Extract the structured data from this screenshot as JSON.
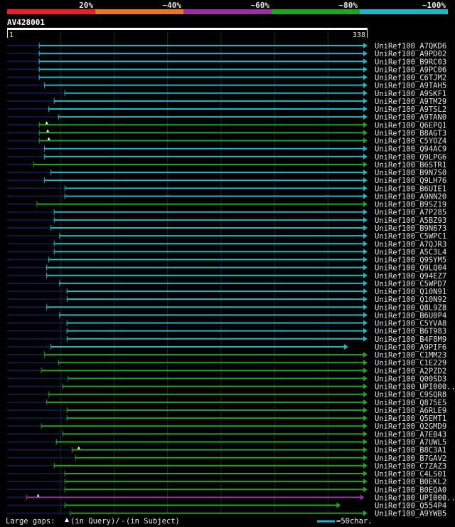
{
  "chart_data": {
    "type": "alignment-overview",
    "query_name": "AV428001",
    "query_length": 338,
    "scale_start_label": "1",
    "scale_end_label": "338",
    "color_scale": [
      {
        "label": "20%",
        "color": "#e8202a"
      },
      {
        "label": "~40%",
        "color": "#e97a1c"
      },
      {
        "label": "~60%",
        "color": "#9b2fa0"
      },
      {
        "label": "~80%",
        "color": "#1fa61f"
      },
      {
        "label": "~100%",
        "color": "#1eb7c8"
      }
    ],
    "hits": [
      {
        "name": "UniRef100_A7QKD6",
        "start": 31,
        "end": 338,
        "identity": "~100%",
        "pre_start": 1
      },
      {
        "name": "UniRef100_A9PD02",
        "start": 31,
        "end": 338,
        "identity": "~100%",
        "pre_start": 1
      },
      {
        "name": "UniRef100_B9RC03",
        "start": 31,
        "end": 338,
        "identity": "~100%",
        "pre_start": 1
      },
      {
        "name": "UniRef100_A9PC06",
        "start": 31,
        "end": 338,
        "identity": "~100%",
        "pre_start": 1
      },
      {
        "name": "UniRef100_C6TJM2",
        "start": 31,
        "end": 338,
        "identity": "~100%",
        "pre_start": 1
      },
      {
        "name": "UniRef100_A9TAH5",
        "start": 36,
        "end": 338,
        "identity": "~100%",
        "pre_start": 1
      },
      {
        "name": "UniRef100_A9SKF1",
        "start": 55,
        "end": 338,
        "identity": "~100%",
        "pre_start": 1
      },
      {
        "name": "UniRef100_A9TM29",
        "start": 45,
        "end": 338,
        "identity": "~100%",
        "pre_start": 1
      },
      {
        "name": "UniRef100_A9TSL2",
        "start": 40,
        "end": 338,
        "identity": "~100%",
        "pre_start": 1
      },
      {
        "name": "UniRef100_A9TAN0",
        "start": 49,
        "end": 338,
        "identity": "~100%",
        "pre_start": 1
      },
      {
        "name": "UniRef100_Q6EPQ1",
        "start": 31,
        "end": 338,
        "identity": "~80%",
        "pre_start": 1,
        "gap_at": 38
      },
      {
        "name": "UniRef100_B8AGT3",
        "start": 31,
        "end": 338,
        "identity": "~80%",
        "pre_start": 1,
        "gap_at": 39
      },
      {
        "name": "UniRef100_C5YOZ4",
        "start": 31,
        "end": 338,
        "identity": "~80%",
        "pre_start": 1,
        "gap_at": 40
      },
      {
        "name": "UniRef100_Q94AC9",
        "start": 36,
        "end": 338,
        "identity": "~100%",
        "pre_start": 1
      },
      {
        "name": "UniRef100_Q9LPG6",
        "start": 36,
        "end": 338,
        "identity": "~100%",
        "pre_start": 1
      },
      {
        "name": "UniRef100_B6STR1",
        "start": 26,
        "end": 338,
        "identity": "~80%",
        "pre_start": 1
      },
      {
        "name": "UniRef100_B9N7S0",
        "start": 42,
        "end": 338,
        "identity": "~100%",
        "pre_start": 1
      },
      {
        "name": "UniRef100_Q9LH76",
        "start": 36,
        "end": 338,
        "identity": "~100%",
        "pre_start": 1
      },
      {
        "name": "UniRef100_B6UIE1",
        "start": 55,
        "end": 338,
        "identity": "~100%",
        "pre_start": 1
      },
      {
        "name": "UniRef100_A9NN20",
        "start": 55,
        "end": 338,
        "identity": "~100%",
        "pre_start": 1
      },
      {
        "name": "UniRef100_B9SZ19",
        "start": 29,
        "end": 338,
        "identity": "~80%",
        "pre_start": 1
      },
      {
        "name": "UniRef100_A7P285",
        "start": 45,
        "end": 338,
        "identity": "~100%",
        "pre_start": 1
      },
      {
        "name": "UniRef100_A5BZ93",
        "start": 45,
        "end": 338,
        "identity": "~100%",
        "pre_start": 1
      },
      {
        "name": "UniRef100_B9N673",
        "start": 42,
        "end": 338,
        "identity": "~100%",
        "pre_start": 1
      },
      {
        "name": "UniRef100_C5WPC1",
        "start": 50,
        "end": 338,
        "identity": "~100%",
        "pre_start": 1
      },
      {
        "name": "UniRef100_A7QJR3",
        "start": 45,
        "end": 338,
        "identity": "~100%",
        "pre_start": 1
      },
      {
        "name": "UniRef100_A5C3L4",
        "start": 45,
        "end": 338,
        "identity": "~100%",
        "pre_start": 1
      },
      {
        "name": "UniRef100_Q9SYM5",
        "start": 40,
        "end": 338,
        "identity": "~100%",
        "pre_start": 1
      },
      {
        "name": "UniRef100_Q9LQ04",
        "start": 38,
        "end": 338,
        "identity": "~100%",
        "pre_start": 1
      },
      {
        "name": "UniRef100_Q94EZ7",
        "start": 38,
        "end": 338,
        "identity": "~100%",
        "pre_start": 1
      },
      {
        "name": "UniRef100_C5WPD7",
        "start": 50,
        "end": 338,
        "identity": "~100%",
        "pre_start": 1
      },
      {
        "name": "UniRef100_Q10N91",
        "start": 57,
        "end": 338,
        "identity": "~100%",
        "pre_start": 1
      },
      {
        "name": "UniRef100_Q10N92",
        "start": 57,
        "end": 338,
        "identity": "~100%",
        "pre_start": 1
      },
      {
        "name": "UniRef100_Q8L9Z8",
        "start": 38,
        "end": 338,
        "identity": "~100%",
        "pre_start": 1
      },
      {
        "name": "UniRef100_B6U0P4",
        "start": 50,
        "end": 338,
        "identity": "~100%",
        "pre_start": 1
      },
      {
        "name": "UniRef100_C5YVA8",
        "start": 57,
        "end": 338,
        "identity": "~100%",
        "pre_start": 1
      },
      {
        "name": "UniRef100_B6T983",
        "start": 57,
        "end": 338,
        "identity": "~100%",
        "pre_start": 1
      },
      {
        "name": "UniRef100_B4F8M9",
        "start": 57,
        "end": 338,
        "identity": "~100%",
        "pre_start": 1
      },
      {
        "name": "UniRef100_A9PIF6",
        "start": 42,
        "end": 320,
        "identity": "~100%",
        "pre_start": 1
      },
      {
        "name": "UniRef100_C1MM23",
        "start": 36,
        "end": 338,
        "identity": "~80%",
        "pre_start": 1
      },
      {
        "name": "UniRef100_C1E229",
        "start": 49,
        "end": 338,
        "identity": "~80%",
        "pre_start": 1
      },
      {
        "name": "UniRef100_A2PZD2",
        "start": 33,
        "end": 338,
        "identity": "~80%",
        "pre_start": 1
      },
      {
        "name": "UniRef100_Q00SD3",
        "start": 58,
        "end": 338,
        "identity": "~80%",
        "pre_start": 1
      },
      {
        "name": "UniRef100_UPI000..",
        "start": 53,
        "end": 338,
        "identity": "~80%",
        "pre_start": 1
      },
      {
        "name": "UniRef100_C9SQR8",
        "start": 40,
        "end": 338,
        "identity": "~80%",
        "pre_start": 1
      },
      {
        "name": "UniRef100_Q875E5",
        "start": 38,
        "end": 338,
        "identity": "~80%",
        "pre_start": 1
      },
      {
        "name": "UniRef100_A6RLE9",
        "start": 57,
        "end": 338,
        "identity": "~80%",
        "pre_start": 1
      },
      {
        "name": "UniRef100_Q5EMT1",
        "start": 57,
        "end": 338,
        "identity": "~80%",
        "pre_start": 1
      },
      {
        "name": "UniRef100_Q2GMD9",
        "start": 33,
        "end": 338,
        "identity": "~80%",
        "pre_start": 1
      },
      {
        "name": "UniRef100_A7EB43",
        "start": 53,
        "end": 338,
        "identity": "~80%",
        "pre_start": 1
      },
      {
        "name": "UniRef100_A7UWL5",
        "start": 47,
        "end": 338,
        "identity": "~80%",
        "pre_start": 1
      },
      {
        "name": "UniRef100_B8C3A1",
        "start": 62,
        "end": 338,
        "identity": "~80%",
        "pre_start": 1,
        "gap_at": 68
      },
      {
        "name": "UniRef100_B7GAV2",
        "start": 65,
        "end": 338,
        "identity": "~80%",
        "pre_start": 1
      },
      {
        "name": "UniRef100_C7ZAZ3",
        "start": 45,
        "end": 338,
        "identity": "~80%",
        "pre_start": 1
      },
      {
        "name": "UniRef100_C4LS01",
        "start": 55,
        "end": 338,
        "identity": "~80%",
        "pre_start": 1
      },
      {
        "name": "UniRef100_B0EKL2",
        "start": 55,
        "end": 338,
        "identity": "~80%",
        "pre_start": 1
      },
      {
        "name": "UniRef100_B0EQA0",
        "start": 55,
        "end": 338,
        "identity": "~80%",
        "pre_start": 1
      },
      {
        "name": "UniRef100_UPI000..",
        "start": 19,
        "end": 335,
        "identity": "~60%",
        "pre_start": 1,
        "gap_at": 30
      },
      {
        "name": "UniRef100_Q554P4",
        "start": 55,
        "end": 313,
        "identity": "~80%",
        "pre_start": 1
      },
      {
        "name": "UniRef100_A9YWB5",
        "start": 60,
        "end": 338,
        "identity": "~80%",
        "pre_start": 1
      }
    ]
  },
  "footer": {
    "large_gaps_label": "Large gaps:",
    "in_query_label": "(in Query)/",
    "subject_dash": "-",
    "in_subject_label": " (in Subject)",
    "legend_scale_label": "=50char."
  }
}
